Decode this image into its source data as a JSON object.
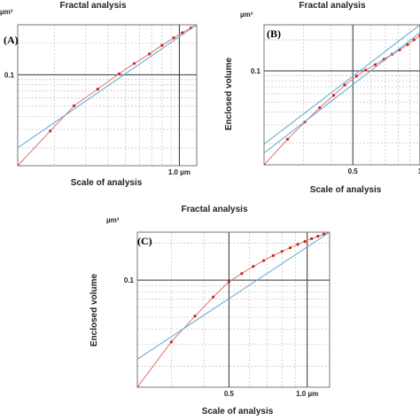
{
  "colors": {
    "fit": "#6aaed6",
    "data": "#d97575",
    "point": "#d62020",
    "major": "#333333",
    "minor": "#bfbfbf"
  },
  "chart_data": [
    {
      "panel_label": "(A)",
      "type": "line",
      "title": "Fractal analysis",
      "xlabel": "Scale of analysis",
      "ylabel": "",
      "y_unit": "µm³",
      "x_scale": "log",
      "y_scale": "log",
      "xlim": [
        0.125,
        1.25
      ],
      "ylim": [
        0.0135,
        0.3
      ],
      "x_ticks": [
        {
          "value": 1.0,
          "label": "1.0 µm"
        }
      ],
      "y_ticks": [
        {
          "value": 0.1,
          "label": "0.1"
        }
      ],
      "grid": true,
      "legend": "none",
      "series": [
        {
          "kind": "data",
          "x": [
            0.125,
            0.19,
            0.258,
            0.35,
            0.46,
            0.56,
            0.68,
            0.8,
            0.93,
            1.04,
            1.16,
            1.25
          ],
          "y": [
            0.0135,
            0.029,
            0.0505,
            0.073,
            0.102,
            0.128,
            0.158,
            0.191,
            0.225,
            0.252,
            0.28,
            0.3
          ]
        },
        {
          "kind": "fit",
          "x": [
            0.125,
            1.25
          ],
          "y": [
            0.02,
            0.3
          ]
        }
      ]
    },
    {
      "panel_label": "(B)",
      "type": "line",
      "title": "Fractal analysis",
      "xlabel": "Scale of analysis",
      "ylabel": "Enclosed volume",
      "y_unit": "µm³",
      "x_scale": "log",
      "y_scale": "log",
      "xlim": [
        0.2,
        1.0
      ],
      "ylim": [
        0.0123,
        0.28
      ],
      "x_ticks": [
        {
          "value": 0.5,
          "label": "0.5"
        },
        {
          "value": 1.0,
          "label": "1"
        }
      ],
      "y_ticks": [
        {
          "value": 0.1,
          "label": "0.1"
        }
      ],
      "grid": true,
      "legend": "none",
      "series": [
        {
          "kind": "data",
          "x": [
            0.2,
            0.255,
            0.305,
            0.355,
            0.41,
            0.46,
            0.52,
            0.57,
            0.63,
            0.69,
            0.75,
            0.81,
            0.88,
            0.94,
            1.0
          ],
          "y": [
            0.0123,
            0.0218,
            0.032,
            0.044,
            0.058,
            0.073,
            0.089,
            0.102,
            0.115,
            0.13,
            0.145,
            0.16,
            0.18,
            0.2,
            0.22
          ]
        },
        {
          "kind": "fit",
          "x": [
            0.2,
            1.0
          ],
          "y": [
            0.0195,
            0.28
          ]
        },
        {
          "kind": "fit",
          "x": [
            0.2,
            1.0
          ],
          "y": [
            0.016,
            0.235
          ]
        }
      ]
    },
    {
      "panel_label": "(C)",
      "type": "line",
      "title": "Fractal analysis",
      "xlabel": "Scale of analysis",
      "ylabel": "Enclosed volume",
      "y_unit": "µm³",
      "x_scale": "log",
      "y_scale": "log",
      "xlim": [
        0.222,
        1.22
      ],
      "ylim": [
        0.0135,
        0.245
      ],
      "x_ticks": [
        {
          "value": 0.5,
          "label": "0.5"
        },
        {
          "value": 1.0,
          "label": "1.0 µm"
        }
      ],
      "y_ticks": [
        {
          "value": 0.1,
          "label": "0.1"
        }
      ],
      "grid": true,
      "legend": "none",
      "series": [
        {
          "kind": "data",
          "x": [
            0.222,
            0.3,
            0.37,
            0.435,
            0.5,
            0.56,
            0.62,
            0.68,
            0.74,
            0.8,
            0.86,
            0.92,
            0.98,
            1.04,
            1.1,
            1.16,
            1.22
          ],
          "y": [
            0.0135,
            0.0315,
            0.051,
            0.073,
            0.097,
            0.113,
            0.129,
            0.144,
            0.158,
            0.171,
            0.183,
            0.195,
            0.206,
            0.217,
            0.227,
            0.236,
            0.245
          ]
        },
        {
          "kind": "fit",
          "x": [
            0.222,
            1.22
          ],
          "y": [
            0.0228,
            0.245
          ]
        }
      ]
    }
  ]
}
